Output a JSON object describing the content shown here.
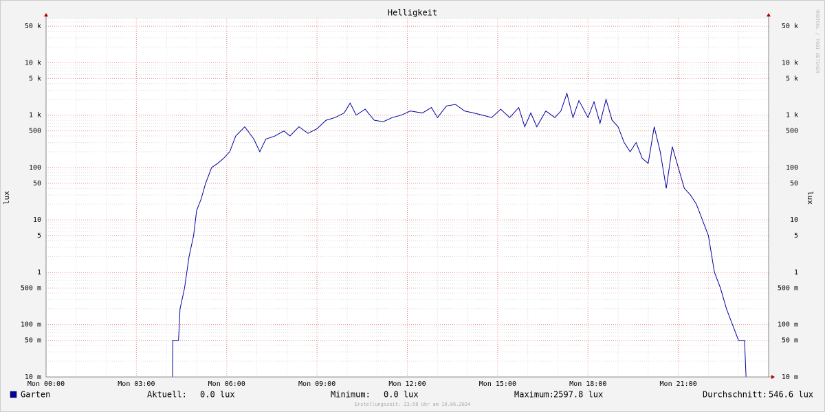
{
  "chart_data": {
    "type": "line",
    "title": "Helligkeit",
    "ylabel": "lux",
    "watermark": "RRDTOOL / TOBI OETIKER",
    "footer": "Erstellungszeit: 23:58 Uhr am 10.06.2024",
    "log_scale": true,
    "grid": true,
    "xlim": [
      0,
      24
    ],
    "xticks": [
      {
        "value": 0,
        "label": "Mon 00:00"
      },
      {
        "value": 3,
        "label": "Mon 03:00"
      },
      {
        "value": 6,
        "label": "Mon 06:00"
      },
      {
        "value": 9,
        "label": "Mon 09:00"
      },
      {
        "value": 12,
        "label": "Mon 12:00"
      },
      {
        "value": 15,
        "label": "Mon 15:00"
      },
      {
        "value": 18,
        "label": "Mon 18:00"
      },
      {
        "value": 21,
        "label": "Mon 21:00"
      }
    ],
    "ylim": [
      0.01,
      70000
    ],
    "yticks": [
      {
        "value": 0.01,
        "label": "10 m"
      },
      {
        "value": 0.05,
        "label": "50 m"
      },
      {
        "value": 0.1,
        "label": "100 m"
      },
      {
        "value": 0.5,
        "label": "500 m"
      },
      1,
      5,
      10,
      50,
      100,
      500,
      {
        "value": 1000,
        "label": "1 k"
      },
      {
        "value": 5000,
        "label": "5 k"
      },
      {
        "value": 10000,
        "label": "10 k"
      },
      {
        "value": 50000,
        "label": "50 k"
      }
    ],
    "x": [
      0,
      4.2,
      4.21,
      4.4,
      4.45,
      4.6,
      4.75,
      4.9,
      5.0,
      5.15,
      5.3,
      5.5,
      5.7,
      5.9,
      6.1,
      6.3,
      6.6,
      6.9,
      7.1,
      7.3,
      7.6,
      7.9,
      8.1,
      8.4,
      8.7,
      9.0,
      9.3,
      9.6,
      9.9,
      10.1,
      10.3,
      10.6,
      10.9,
      11.2,
      11.5,
      11.8,
      12.1,
      12.5,
      12.8,
      13.0,
      13.3,
      13.6,
      13.9,
      14.2,
      14.5,
      14.8,
      15.1,
      15.4,
      15.7,
      15.9,
      16.1,
      16.3,
      16.6,
      16.9,
      17.1,
      17.3,
      17.5,
      17.7,
      18.0,
      18.2,
      18.4,
      18.6,
      18.8,
      19.0,
      19.2,
      19.4,
      19.6,
      19.8,
      20.0,
      20.2,
      20.4,
      20.6,
      20.8,
      21.0,
      21.2,
      21.4,
      21.6,
      21.8,
      22.0,
      22.2,
      22.4,
      22.6,
      22.8,
      23.0,
      23.2,
      23.25,
      24
    ],
    "series": [
      {
        "name": "Garten",
        "color": "#0000a0",
        "values": [
          0,
          0,
          0.05,
          0.05,
          0.2,
          0.5,
          2,
          5,
          15,
          25,
          50,
          100,
          120,
          150,
          200,
          400,
          600,
          350,
          200,
          350,
          400,
          500,
          400,
          600,
          450,
          550,
          800,
          900,
          1100,
          1700,
          1000,
          1300,
          800,
          750,
          900,
          1000,
          1200,
          1100,
          1400,
          900,
          1500,
          1600,
          1200,
          1100,
          1000,
          900,
          1300,
          900,
          1400,
          600,
          1100,
          600,
          1200,
          900,
          1200,
          2600,
          900,
          1900,
          900,
          1800,
          700,
          2000,
          800,
          600,
          300,
          200,
          300,
          150,
          120,
          600,
          200,
          40,
          250,
          100,
          40,
          30,
          20,
          10,
          5,
          1,
          0.5,
          0.2,
          0.1,
          0.05,
          0.05,
          0,
          0
        ]
      }
    ],
    "legend_stats": [
      {
        "label": "Aktuell:",
        "value": "0.0 lux"
      },
      {
        "label": "Minimum:",
        "value": "0.0 lux"
      },
      {
        "label": "Maximum:",
        "value": "2597.8 lux"
      },
      {
        "label": "Durchschnitt:",
        "value": "546.6 lux"
      }
    ]
  }
}
